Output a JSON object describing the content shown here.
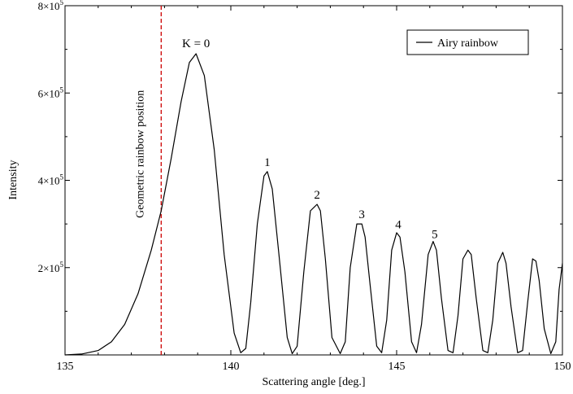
{
  "chart_data": {
    "type": "line",
    "xlabel": "Scattering angle [deg.]",
    "ylabel": "Intensity",
    "xlim": [
      135,
      150
    ],
    "ylim": [
      0,
      800000
    ],
    "grid": false,
    "legend_position": "top-right",
    "x_ticks": [
      135,
      140,
      145,
      150
    ],
    "y_ticks": [
      {
        "value": 200000,
        "mantissa": "2×10",
        "exp": "5"
      },
      {
        "value": 400000,
        "mantissa": "4×10",
        "exp": "5"
      },
      {
        "value": 600000,
        "mantissa": "6×10",
        "exp": "5"
      },
      {
        "value": 800000,
        "mantissa": "8×10",
        "exp": "5"
      }
    ],
    "series": [
      {
        "name": "Airy rainbow",
        "color": "#000000",
        "x": [
          135.0,
          135.5,
          136.0,
          136.4,
          136.8,
          137.2,
          137.6,
          137.9,
          138.2,
          138.5,
          138.75,
          138.95,
          139.2,
          139.5,
          139.8,
          140.1,
          140.3,
          140.45,
          140.6,
          140.8,
          141.0,
          141.1,
          141.25,
          141.45,
          141.7,
          141.85,
          142.0,
          142.2,
          142.4,
          142.6,
          142.7,
          142.85,
          143.05,
          143.3,
          143.45,
          143.6,
          143.8,
          143.95,
          144.05,
          144.2,
          144.4,
          144.55,
          144.7,
          144.85,
          145.0,
          145.1,
          145.25,
          145.45,
          145.6,
          145.75,
          145.95,
          146.1,
          146.2,
          146.35,
          146.55,
          146.7,
          146.85,
          147.0,
          147.15,
          147.25,
          147.4,
          147.6,
          147.75,
          147.9,
          148.05,
          148.2,
          148.3,
          148.45,
          148.65,
          148.8,
          148.95,
          149.1,
          149.2,
          149.3,
          149.45,
          149.65,
          149.8,
          149.9,
          150.0
        ],
        "y": [
          0,
          2000,
          10000,
          30000,
          70000,
          140000,
          240000,
          330000,
          450000,
          580000,
          670000,
          690000,
          640000,
          470000,
          230000,
          50000,
          5000,
          15000,
          120000,
          300000,
          410000,
          420000,
          380000,
          230000,
          40000,
          3000,
          20000,
          190000,
          330000,
          345000,
          330000,
          220000,
          40000,
          3000,
          30000,
          200000,
          300000,
          300000,
          270000,
          160000,
          20000,
          5000,
          80000,
          240000,
          280000,
          270000,
          190000,
          30000,
          5000,
          70000,
          230000,
          260000,
          240000,
          130000,
          10000,
          5000,
          90000,
          220000,
          240000,
          230000,
          130000,
          10000,
          5000,
          80000,
          210000,
          235000,
          210000,
          110000,
          5000,
          10000,
          120000,
          220000,
          215000,
          170000,
          60000,
          3000,
          30000,
          150000,
          210000
        ]
      }
    ],
    "annotations": {
      "peaks": [
        {
          "label": "K = 0",
          "x": 138.95,
          "y": 705000
        },
        {
          "label": "1",
          "x": 141.1,
          "y": 433000
        },
        {
          "label": "2",
          "x": 142.6,
          "y": 358000
        },
        {
          "label": "3",
          "x": 143.95,
          "y": 313000
        },
        {
          "label": "4",
          "x": 145.05,
          "y": 290000
        },
        {
          "label": "5",
          "x": 146.15,
          "y": 268000
        }
      ],
      "geometric_line": {
        "x": 137.9,
        "color": "#cc0000",
        "label": "Geometric rainbow position"
      }
    }
  }
}
